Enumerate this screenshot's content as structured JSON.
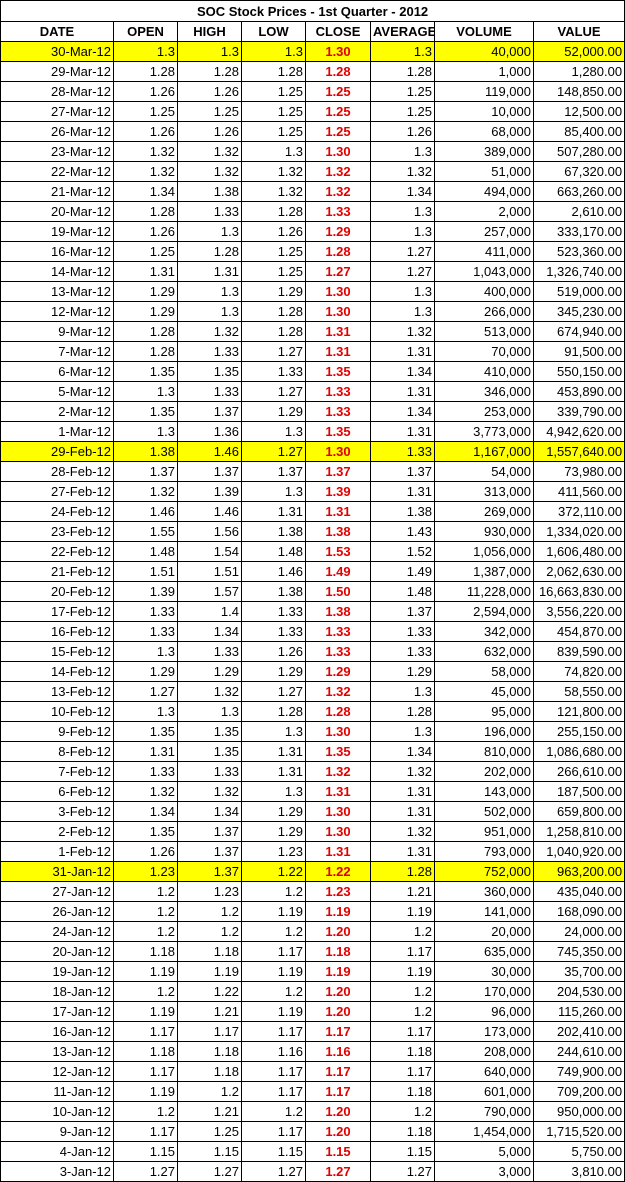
{
  "title": "SOC Stock Prices - 1st Quarter - 2012",
  "columns": [
    "DATE",
    "OPEN",
    "HIGH",
    "LOW",
    "CLOSE",
    "AVERAGE",
    "VOLUME",
    "VALUE"
  ],
  "colors": {
    "highlight": "#ffff00",
    "close_text": "#e00000"
  },
  "highlighted_dates": [
    "30-Mar-12",
    "29-Feb-12",
    "31-Jan-12"
  ],
  "rows": [
    [
      "30-Mar-12",
      "1.3",
      "1.3",
      "1.3",
      "1.30",
      "1.3",
      "40,000",
      "52,000.00"
    ],
    [
      "29-Mar-12",
      "1.28",
      "1.28",
      "1.28",
      "1.28",
      "1.28",
      "1,000",
      "1,280.00"
    ],
    [
      "28-Mar-12",
      "1.26",
      "1.26",
      "1.25",
      "1.25",
      "1.25",
      "119,000",
      "148,850.00"
    ],
    [
      "27-Mar-12",
      "1.25",
      "1.25",
      "1.25",
      "1.25",
      "1.25",
      "10,000",
      "12,500.00"
    ],
    [
      "26-Mar-12",
      "1.26",
      "1.26",
      "1.25",
      "1.25",
      "1.26",
      "68,000",
      "85,400.00"
    ],
    [
      "23-Mar-12",
      "1.32",
      "1.32",
      "1.3",
      "1.30",
      "1.3",
      "389,000",
      "507,280.00"
    ],
    [
      "22-Mar-12",
      "1.32",
      "1.32",
      "1.32",
      "1.32",
      "1.32",
      "51,000",
      "67,320.00"
    ],
    [
      "21-Mar-12",
      "1.34",
      "1.38",
      "1.32",
      "1.32",
      "1.34",
      "494,000",
      "663,260.00"
    ],
    [
      "20-Mar-12",
      "1.28",
      "1.33",
      "1.28",
      "1.33",
      "1.3",
      "2,000",
      "2,610.00"
    ],
    [
      "19-Mar-12",
      "1.26",
      "1.3",
      "1.26",
      "1.29",
      "1.3",
      "257,000",
      "333,170.00"
    ],
    [
      "16-Mar-12",
      "1.25",
      "1.28",
      "1.25",
      "1.28",
      "1.27",
      "411,000",
      "523,360.00"
    ],
    [
      "14-Mar-12",
      "1.31",
      "1.31",
      "1.25",
      "1.27",
      "1.27",
      "1,043,000",
      "1,326,740.00"
    ],
    [
      "13-Mar-12",
      "1.29",
      "1.3",
      "1.29",
      "1.30",
      "1.3",
      "400,000",
      "519,000.00"
    ],
    [
      "12-Mar-12",
      "1.29",
      "1.3",
      "1.28",
      "1.30",
      "1.3",
      "266,000",
      "345,230.00"
    ],
    [
      "9-Mar-12",
      "1.28",
      "1.32",
      "1.28",
      "1.31",
      "1.32",
      "513,000",
      "674,940.00"
    ],
    [
      "7-Mar-12",
      "1.28",
      "1.33",
      "1.27",
      "1.31",
      "1.31",
      "70,000",
      "91,500.00"
    ],
    [
      "6-Mar-12",
      "1.35",
      "1.35",
      "1.33",
      "1.35",
      "1.34",
      "410,000",
      "550,150.00"
    ],
    [
      "5-Mar-12",
      "1.3",
      "1.33",
      "1.27",
      "1.33",
      "1.31",
      "346,000",
      "453,890.00"
    ],
    [
      "2-Mar-12",
      "1.35",
      "1.37",
      "1.29",
      "1.33",
      "1.34",
      "253,000",
      "339,790.00"
    ],
    [
      "1-Mar-12",
      "1.3",
      "1.36",
      "1.3",
      "1.35",
      "1.31",
      "3,773,000",
      "4,942,620.00"
    ],
    [
      "29-Feb-12",
      "1.38",
      "1.46",
      "1.27",
      "1.30",
      "1.33",
      "1,167,000",
      "1,557,640.00"
    ],
    [
      "28-Feb-12",
      "1.37",
      "1.37",
      "1.37",
      "1.37",
      "1.37",
      "54,000",
      "73,980.00"
    ],
    [
      "27-Feb-12",
      "1.32",
      "1.39",
      "1.3",
      "1.39",
      "1.31",
      "313,000",
      "411,560.00"
    ],
    [
      "24-Feb-12",
      "1.46",
      "1.46",
      "1.31",
      "1.31",
      "1.38",
      "269,000",
      "372,110.00"
    ],
    [
      "23-Feb-12",
      "1.55",
      "1.56",
      "1.38",
      "1.38",
      "1.43",
      "930,000",
      "1,334,020.00"
    ],
    [
      "22-Feb-12",
      "1.48",
      "1.54",
      "1.48",
      "1.53",
      "1.52",
      "1,056,000",
      "1,606,480.00"
    ],
    [
      "21-Feb-12",
      "1.51",
      "1.51",
      "1.46",
      "1.49",
      "1.49",
      "1,387,000",
      "2,062,630.00"
    ],
    [
      "20-Feb-12",
      "1.39",
      "1.57",
      "1.38",
      "1.50",
      "1.48",
      "11,228,000",
      "16,663,830.00"
    ],
    [
      "17-Feb-12",
      "1.33",
      "1.4",
      "1.33",
      "1.38",
      "1.37",
      "2,594,000",
      "3,556,220.00"
    ],
    [
      "16-Feb-12",
      "1.33",
      "1.34",
      "1.33",
      "1.33",
      "1.33",
      "342,000",
      "454,870.00"
    ],
    [
      "15-Feb-12",
      "1.3",
      "1.33",
      "1.26",
      "1.33",
      "1.33",
      "632,000",
      "839,590.00"
    ],
    [
      "14-Feb-12",
      "1.29",
      "1.29",
      "1.29",
      "1.29",
      "1.29",
      "58,000",
      "74,820.00"
    ],
    [
      "13-Feb-12",
      "1.27",
      "1.32",
      "1.27",
      "1.32",
      "1.3",
      "45,000",
      "58,550.00"
    ],
    [
      "10-Feb-12",
      "1.3",
      "1.3",
      "1.28",
      "1.28",
      "1.28",
      "95,000",
      "121,800.00"
    ],
    [
      "9-Feb-12",
      "1.35",
      "1.35",
      "1.3",
      "1.30",
      "1.3",
      "196,000",
      "255,150.00"
    ],
    [
      "8-Feb-12",
      "1.31",
      "1.35",
      "1.31",
      "1.35",
      "1.34",
      "810,000",
      "1,086,680.00"
    ],
    [
      "7-Feb-12",
      "1.33",
      "1.33",
      "1.31",
      "1.32",
      "1.32",
      "202,000",
      "266,610.00"
    ],
    [
      "6-Feb-12",
      "1.32",
      "1.32",
      "1.3",
      "1.31",
      "1.31",
      "143,000",
      "187,500.00"
    ],
    [
      "3-Feb-12",
      "1.34",
      "1.34",
      "1.29",
      "1.30",
      "1.31",
      "502,000",
      "659,800.00"
    ],
    [
      "2-Feb-12",
      "1.35",
      "1.37",
      "1.29",
      "1.30",
      "1.32",
      "951,000",
      "1,258,810.00"
    ],
    [
      "1-Feb-12",
      "1.26",
      "1.37",
      "1.23",
      "1.31",
      "1.31",
      "793,000",
      "1,040,920.00"
    ],
    [
      "31-Jan-12",
      "1.23",
      "1.37",
      "1.22",
      "1.22",
      "1.28",
      "752,000",
      "963,200.00"
    ],
    [
      "27-Jan-12",
      "1.2",
      "1.23",
      "1.2",
      "1.23",
      "1.21",
      "360,000",
      "435,040.00"
    ],
    [
      "26-Jan-12",
      "1.2",
      "1.2",
      "1.19",
      "1.19",
      "1.19",
      "141,000",
      "168,090.00"
    ],
    [
      "24-Jan-12",
      "1.2",
      "1.2",
      "1.2",
      "1.20",
      "1.2",
      "20,000",
      "24,000.00"
    ],
    [
      "20-Jan-12",
      "1.18",
      "1.18",
      "1.17",
      "1.18",
      "1.17",
      "635,000",
      "745,350.00"
    ],
    [
      "19-Jan-12",
      "1.19",
      "1.19",
      "1.19",
      "1.19",
      "1.19",
      "30,000",
      "35,700.00"
    ],
    [
      "18-Jan-12",
      "1.2",
      "1.22",
      "1.2",
      "1.20",
      "1.2",
      "170,000",
      "204,530.00"
    ],
    [
      "17-Jan-12",
      "1.19",
      "1.21",
      "1.19",
      "1.20",
      "1.2",
      "96,000",
      "115,260.00"
    ],
    [
      "16-Jan-12",
      "1.17",
      "1.17",
      "1.17",
      "1.17",
      "1.17",
      "173,000",
      "202,410.00"
    ],
    [
      "13-Jan-12",
      "1.18",
      "1.18",
      "1.16",
      "1.16",
      "1.18",
      "208,000",
      "244,610.00"
    ],
    [
      "12-Jan-12",
      "1.17",
      "1.18",
      "1.17",
      "1.17",
      "1.17",
      "640,000",
      "749,900.00"
    ],
    [
      "11-Jan-12",
      "1.19",
      "1.2",
      "1.17",
      "1.17",
      "1.18",
      "601,000",
      "709,200.00"
    ],
    [
      "10-Jan-12",
      "1.2",
      "1.21",
      "1.2",
      "1.20",
      "1.2",
      "790,000",
      "950,000.00"
    ],
    [
      "9-Jan-12",
      "1.17",
      "1.25",
      "1.17",
      "1.20",
      "1.18",
      "1,454,000",
      "1,715,520.00"
    ],
    [
      "4-Jan-12",
      "1.15",
      "1.15",
      "1.15",
      "1.15",
      "1.15",
      "5,000",
      "5,750.00"
    ],
    [
      "3-Jan-12",
      "1.27",
      "1.27",
      "1.27",
      "1.27",
      "1.27",
      "3,000",
      "3,810.00"
    ]
  ]
}
